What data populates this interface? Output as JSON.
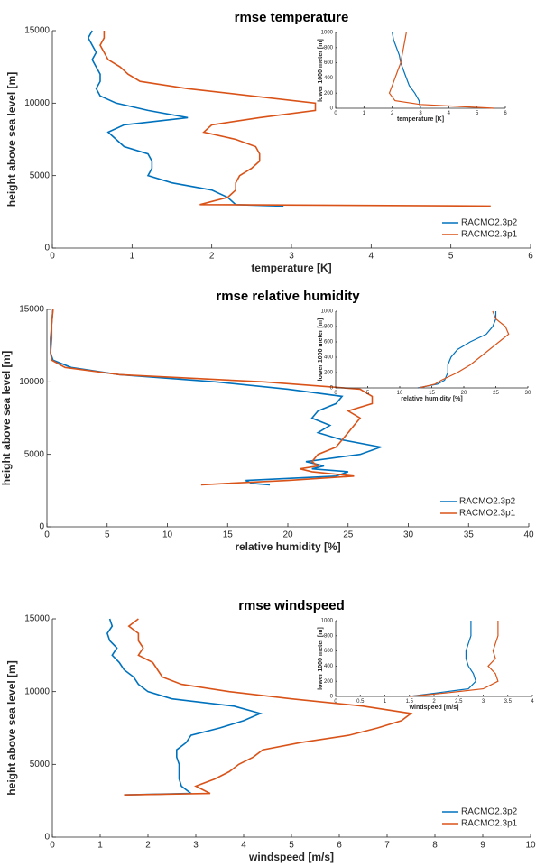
{
  "chart_data": [
    {
      "type": "line",
      "title": "rmse temperature",
      "xlabel": "temperature [K]",
      "ylabel": "height above sea level [m]",
      "y": [
        2900,
        3000,
        3500,
        4000,
        4500,
        5000,
        5500,
        6000,
        6500,
        7000,
        7500,
        8000,
        8500,
        9000,
        9500,
        10000,
        10500,
        11000,
        11500,
        12000,
        12500,
        13000,
        13500,
        14000,
        14500,
        15000
      ],
      "series": [
        {
          "name": "RACMO2.3p2",
          "color": "#0072bd",
          "values": [
            2.9,
            2.3,
            2.2,
            2.0,
            1.5,
            1.2,
            1.25,
            1.25,
            1.2,
            0.9,
            0.8,
            0.7,
            0.9,
            1.7,
            1.2,
            0.8,
            0.6,
            0.55,
            0.6,
            0.6,
            0.55,
            0.5,
            0.55,
            0.5,
            0.45,
            0.5
          ]
        },
        {
          "name": "RACMO2.3p1",
          "color": "#d95319",
          "values": [
            5.5,
            1.85,
            2.2,
            2.3,
            2.3,
            2.35,
            2.5,
            2.6,
            2.6,
            2.55,
            2.3,
            1.9,
            2.0,
            2.6,
            3.3,
            3.3,
            2.5,
            1.7,
            1.1,
            0.95,
            0.85,
            0.7,
            0.65,
            0.6,
            0.65,
            0.65
          ]
        }
      ],
      "xlim": [
        0,
        6
      ],
      "ylim": [
        0,
        15000
      ],
      "xticks": [
        0,
        1,
        2,
        3,
        4,
        5,
        6
      ],
      "yticks": [
        0,
        5000,
        10000,
        15000
      ],
      "legend": "lower right"
    },
    {
      "type": "line",
      "xlabel": "temperature [K]",
      "ylabel": "lower 1000 meter [m]",
      "y": [
        0,
        50,
        100,
        200,
        300,
        400,
        500,
        600,
        700,
        800,
        900,
        1000
      ],
      "series": [
        {
          "name": "RACMO2.3p2",
          "color": "#0072bd",
          "values": [
            3.0,
            2.97,
            2.95,
            2.8,
            2.6,
            2.5,
            2.4,
            2.3,
            2.25,
            2.15,
            2.05,
            2.0
          ]
        },
        {
          "name": "RACMO2.3p1",
          "color": "#d95319",
          "values": [
            5.6,
            3.0,
            2.1,
            1.9,
            2.0,
            2.1,
            2.2,
            2.3,
            2.35,
            2.4,
            2.45,
            2.5
          ]
        }
      ],
      "xlim": [
        0,
        6
      ],
      "ylim": [
        0,
        1000
      ],
      "xticks": [
        0,
        1,
        2,
        3,
        4,
        5,
        6
      ],
      "yticks": [
        0,
        200,
        400,
        600,
        800,
        1000
      ]
    },
    {
      "type": "line",
      "title": "rmse relative humidity",
      "xlabel": "relative humidity [%]",
      "ylabel": "height above sea level [m]",
      "y": [
        2900,
        3000,
        3200,
        3500,
        3800,
        4000,
        4200,
        4500,
        5000,
        5500,
        6000,
        6500,
        7000,
        7500,
        8000,
        8500,
        9000,
        9500,
        10000,
        10500,
        11000,
        11500,
        12000,
        13000,
        14000,
        15000
      ],
      "series": [
        {
          "name": "RACMO2.3p2",
          "color": "#0072bd",
          "values": [
            18.5,
            17.0,
            16.5,
            24,
            25,
            22,
            23,
            21.5,
            26,
            27.7,
            24.5,
            22.5,
            23.5,
            22,
            22.5,
            24,
            24.5,
            20,
            14,
            6,
            2,
            0.5,
            0.3,
            0.3,
            0.4,
            0.5
          ]
        },
        {
          "name": "RACMO2.3p1",
          "color": "#d95319",
          "values": [
            12.8,
            15,
            20,
            25.5,
            22,
            21,
            22.5,
            22,
            22.5,
            24,
            24.5,
            25,
            25.5,
            26,
            25,
            27,
            27,
            26,
            18,
            6,
            1.5,
            0.4,
            0.3,
            0.4,
            0.4,
            0.5
          ]
        }
      ],
      "xlim": [
        0,
        40
      ],
      "ylim": [
        0,
        15000
      ],
      "xticks": [
        0,
        5,
        10,
        15,
        20,
        25,
        30,
        35,
        40
      ],
      "yticks": [
        0,
        5000,
        10000,
        15000
      ],
      "legend": "lower right"
    },
    {
      "type": "line",
      "xlabel": "relative humidity [%]",
      "ylabel": "lower 1000 meter [m]",
      "y": [
        0,
        50,
        100,
        200,
        300,
        400,
        500,
        600,
        700,
        800,
        900,
        1000
      ],
      "series": [
        {
          "name": "RACMO2.3p2",
          "color": "#0072bd",
          "values": [
            12.8,
            15.9,
            17,
            17.5,
            17.5,
            18,
            19,
            21,
            23.5,
            24.5,
            25,
            25
          ]
        },
        {
          "name": "RACMO2.3p1",
          "color": "#d95319",
          "values": [
            13,
            15.5,
            16.5,
            19,
            21,
            22.5,
            24,
            25.5,
            27,
            26.5,
            25,
            24.5
          ]
        }
      ],
      "xlim": [
        0,
        30
      ],
      "ylim": [
        0,
        1000
      ],
      "xticks": [
        0,
        5,
        10,
        15,
        20,
        25,
        30
      ],
      "yticks": [
        0,
        200,
        400,
        600,
        800,
        1000
      ]
    },
    {
      "type": "line",
      "title": "rmse windspeed",
      "xlabel": "windspeed [m/s]",
      "ylabel": "height above sea level [m]",
      "y": [
        2900,
        3000,
        3500,
        4000,
        4500,
        5000,
        5500,
        6000,
        6500,
        7000,
        7500,
        8000,
        8500,
        9000,
        9500,
        10000,
        10500,
        11000,
        11500,
        12000,
        12500,
        13000,
        13500,
        14000,
        14500,
        15000
      ],
      "series": [
        {
          "name": "RACMO2.3p2",
          "color": "#0072bd",
          "values": [
            1.5,
            2.9,
            2.7,
            2.65,
            2.65,
            2.65,
            2.6,
            2.6,
            2.8,
            2.9,
            3.5,
            4.0,
            4.35,
            3.8,
            2.5,
            2.0,
            1.8,
            1.7,
            1.5,
            1.4,
            1.25,
            1.35,
            1.2,
            1.15,
            1.25,
            1.2
          ]
        },
        {
          "name": "RACMO2.3p1",
          "color": "#d95319",
          "values": [
            1.5,
            3.3,
            3.0,
            3.4,
            3.7,
            3.9,
            4.2,
            4.4,
            5.2,
            6.2,
            6.8,
            7.3,
            7.5,
            6.5,
            5.0,
            3.7,
            2.7,
            2.3,
            2.2,
            2.1,
            1.8,
            1.9,
            1.8,
            1.8,
            1.6,
            1.8
          ]
        }
      ],
      "xlim": [
        0,
        10
      ],
      "ylim": [
        0,
        15000
      ],
      "xticks": [
        0,
        1,
        2,
        3,
        4,
        5,
        6,
        7,
        8,
        9,
        10
      ],
      "yticks": [
        0,
        5000,
        10000,
        15000
      ],
      "legend": "lower right"
    },
    {
      "type": "line",
      "xlabel": "windspeed [m/s]",
      "ylabel": "lower 1000 meter [m]",
      "y": [
        0,
        50,
        100,
        200,
        300,
        400,
        500,
        600,
        700,
        800,
        900,
        1000
      ],
      "series": [
        {
          "name": "RACMO2.3p2",
          "color": "#0072bd",
          "values": [
            1.5,
            2.1,
            2.7,
            2.85,
            2.8,
            2.7,
            2.65,
            2.65,
            2.7,
            2.75,
            2.75,
            2.75
          ]
        },
        {
          "name": "RACMO2.3p1",
          "color": "#d95319",
          "values": [
            1.5,
            2.3,
            3.0,
            3.3,
            3.25,
            3.1,
            3.25,
            3.2,
            3.25,
            3.3,
            3.3,
            3.3
          ]
        }
      ],
      "xlim": [
        0,
        4
      ],
      "ylim": [
        0,
        1000
      ],
      "xticks": [
        0,
        0.5,
        1,
        1.5,
        2,
        2.5,
        3,
        3.5,
        4
      ],
      "yticks": [
        0,
        200,
        400,
        600,
        800,
        1000
      ]
    }
  ]
}
